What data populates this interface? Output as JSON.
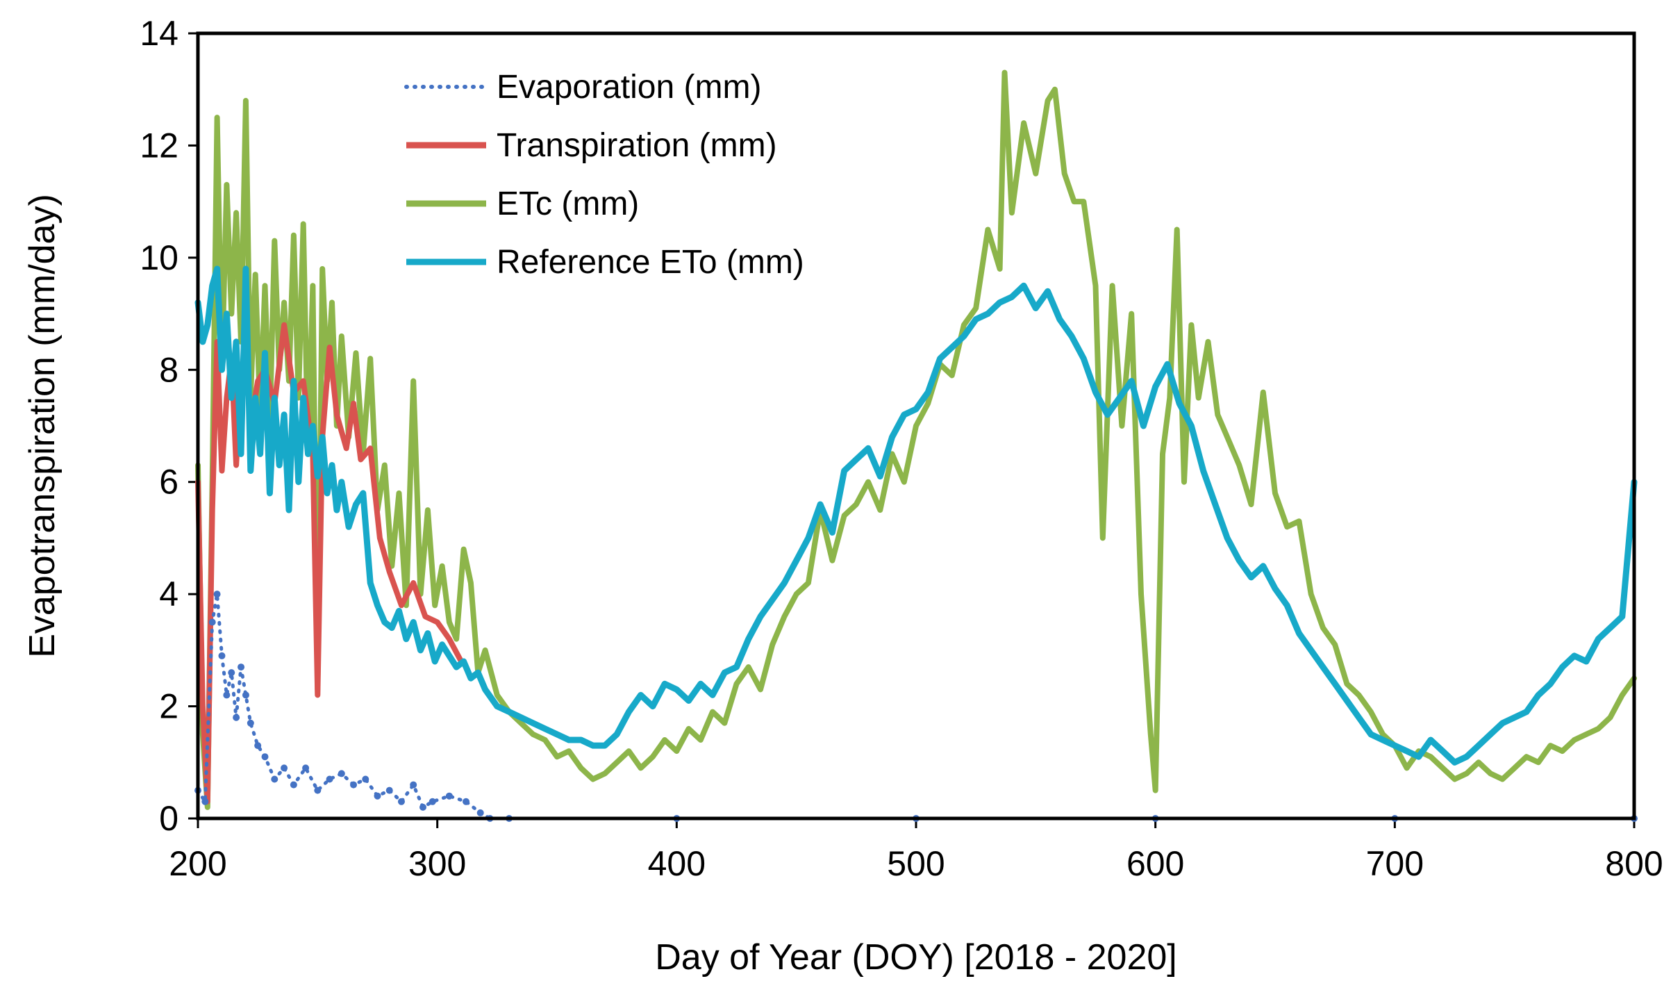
{
  "chart_data": {
    "type": "line",
    "title": "",
    "xlabel": "Day of Year (DOY) [2018 - 2020]",
    "ylabel": "Evapotranspiration (mm/day)",
    "xlim": [
      200,
      800
    ],
    "ylim": [
      0,
      14
    ],
    "xticks": [
      "200",
      "300",
      "400",
      "500",
      "600",
      "700",
      "800"
    ],
    "yticks": [
      "0",
      "2",
      "4",
      "6",
      "8",
      "10",
      "12",
      "14"
    ],
    "grid": false,
    "legend_position": "top-left",
    "series": [
      {
        "name": "Evaporation (mm)",
        "color": "#4472C4",
        "style": "dotted",
        "x": [
          200,
          203,
          206,
          208,
          210,
          212,
          214,
          216,
          218,
          220,
          222,
          225,
          228,
          232,
          236,
          240,
          245,
          250,
          255,
          260,
          265,
          270,
          275,
          280,
          285,
          290,
          294,
          298,
          305,
          312,
          318,
          322,
          330,
          400,
          500,
          600,
          700,
          800
        ],
        "y": [
          0.5,
          0.3,
          3.5,
          4.0,
          2.9,
          2.2,
          2.6,
          1.8,
          2.7,
          2.2,
          1.7,
          1.3,
          1.1,
          0.7,
          0.9,
          0.6,
          0.9,
          0.5,
          0.7,
          0.8,
          0.6,
          0.7,
          0.4,
          0.5,
          0.3,
          0.6,
          0.2,
          0.3,
          0.4,
          0.3,
          0.1,
          0.0,
          0.0,
          0.0,
          0.0,
          0.0,
          0.0,
          0.0
        ]
      },
      {
        "name": "Transpiration (mm)",
        "color": "#D9534F",
        "style": "solid",
        "x": [
          200,
          202,
          204,
          206,
          208,
          210,
          212,
          214,
          216,
          218,
          220,
          222,
          225,
          228,
          232,
          236,
          240,
          244,
          248,
          250,
          252,
          255,
          258,
          262,
          265,
          268,
          272,
          276,
          280,
          285,
          290,
          295,
          300,
          305,
          310
        ],
        "y": [
          6.0,
          2.0,
          0.3,
          5.5,
          8.5,
          6.2,
          7.5,
          8.2,
          6.3,
          7.9,
          8.5,
          7.0,
          7.8,
          8.0,
          7.4,
          8.8,
          7.6,
          7.8,
          6.5,
          2.2,
          6.8,
          8.4,
          7.2,
          6.6,
          7.4,
          6.4,
          6.6,
          5.0,
          4.4,
          3.8,
          4.2,
          3.6,
          3.5,
          3.2,
          2.8
        ]
      },
      {
        "name": "ETc (mm)",
        "color": "#8DB54A",
        "style": "solid",
        "x": [
          200,
          202,
          204,
          206,
          208,
          210,
          212,
          214,
          216,
          218,
          220,
          222,
          224,
          226,
          228,
          230,
          232,
          234,
          236,
          238,
          240,
          242,
          244,
          246,
          248,
          250,
          252,
          254,
          256,
          258,
          260,
          263,
          266,
          269,
          272,
          275,
          278,
          281,
          284,
          287,
          290,
          293,
          296,
          299,
          302,
          305,
          308,
          311,
          314,
          317,
          320,
          325,
          330,
          335,
          340,
          345,
          350,
          355,
          360,
          365,
          370,
          375,
          380,
          385,
          390,
          395,
          400,
          405,
          410,
          415,
          420,
          425,
          430,
          435,
          440,
          445,
          450,
          455,
          460,
          465,
          470,
          475,
          480,
          485,
          490,
          495,
          500,
          505,
          510,
          515,
          520,
          525,
          530,
          535,
          537,
          540,
          545,
          550,
          555,
          558,
          562,
          566,
          570,
          575,
          578,
          582,
          586,
          590,
          594,
          598,
          600,
          603,
          606,
          609,
          612,
          615,
          618,
          622,
          626,
          630,
          635,
          640,
          645,
          650,
          655,
          660,
          665,
          670,
          675,
          680,
          685,
          690,
          695,
          700,
          705,
          710,
          715,
          720,
          725,
          730,
          735,
          740,
          745,
          750,
          755,
          760,
          765,
          770,
          775,
          780,
          785,
          790,
          795,
          800
        ],
        "y": [
          6.3,
          1.5,
          0.2,
          6.0,
          12.5,
          8.0,
          11.3,
          9.0,
          10.8,
          8.5,
          12.8,
          7.5,
          9.7,
          7.2,
          9.5,
          7.0,
          10.3,
          8.0,
          9.2,
          7.8,
          10.4,
          7.5,
          10.6,
          6.5,
          9.5,
          2.3,
          9.8,
          7.8,
          9.2,
          7.0,
          8.6,
          6.8,
          8.3,
          6.5,
          8.2,
          5.5,
          6.3,
          4.5,
          5.8,
          3.8,
          7.8,
          4.0,
          5.5,
          3.8,
          4.5,
          3.5,
          3.2,
          4.8,
          4.2,
          2.6,
          3.0,
          2.2,
          1.9,
          1.7,
          1.5,
          1.4,
          1.1,
          1.2,
          0.9,
          0.7,
          0.8,
          1.0,
          1.2,
          0.9,
          1.1,
          1.4,
          1.2,
          1.6,
          1.4,
          1.9,
          1.7,
          2.4,
          2.7,
          2.3,
          3.1,
          3.6,
          4.0,
          4.2,
          5.5,
          4.6,
          5.4,
          5.6,
          6.0,
          5.5,
          6.5,
          6.0,
          7.0,
          7.4,
          8.1,
          7.9,
          8.8,
          9.1,
          10.5,
          9.8,
          13.3,
          10.8,
          12.4,
          11.5,
          12.8,
          13.0,
          11.5,
          11.0,
          11.0,
          9.5,
          5.0,
          9.5,
          7.0,
          9.0,
          4.0,
          1.5,
          0.5,
          6.5,
          7.5,
          10.5,
          6.0,
          8.8,
          7.5,
          8.5,
          7.2,
          6.8,
          6.3,
          5.6,
          7.6,
          5.8,
          5.2,
          5.3,
          4.0,
          3.4,
          3.1,
          2.4,
          2.2,
          1.9,
          1.5,
          1.3,
          0.9,
          1.2,
          1.1,
          0.9,
          0.7,
          0.8,
          1.0,
          0.8,
          0.7,
          0.9,
          1.1,
          1.0,
          1.3,
          1.2,
          1.4,
          1.5,
          1.6,
          1.8,
          2.2,
          2.5
        ]
      },
      {
        "name": "Reference ETo (mm)",
        "color": "#17A9C9",
        "style": "solid",
        "x": [
          200,
          202,
          204,
          206,
          208,
          210,
          212,
          214,
          216,
          218,
          220,
          222,
          224,
          226,
          228,
          230,
          232,
          234,
          236,
          238,
          240,
          242,
          244,
          246,
          248,
          250,
          252,
          254,
          256,
          258,
          260,
          263,
          266,
          269,
          272,
          275,
          278,
          281,
          284,
          287,
          290,
          293,
          296,
          299,
          302,
          305,
          308,
          311,
          314,
          317,
          320,
          325,
          330,
          335,
          340,
          345,
          350,
          355,
          360,
          365,
          370,
          375,
          380,
          385,
          390,
          395,
          400,
          405,
          410,
          415,
          420,
          425,
          430,
          435,
          440,
          445,
          450,
          455,
          460,
          465,
          470,
          475,
          480,
          485,
          490,
          495,
          500,
          505,
          510,
          515,
          520,
          525,
          530,
          535,
          540,
          545,
          550,
          555,
          560,
          565,
          570,
          575,
          580,
          585,
          590,
          595,
          600,
          605,
          610,
          615,
          620,
          625,
          630,
          635,
          640,
          645,
          650,
          655,
          660,
          665,
          670,
          675,
          680,
          685,
          690,
          695,
          700,
          705,
          710,
          715,
          720,
          725,
          730,
          735,
          740,
          745,
          750,
          755,
          760,
          765,
          770,
          775,
          780,
          785,
          790,
          795,
          800
        ],
        "y": [
          9.2,
          8.5,
          8.8,
          9.5,
          9.8,
          8.0,
          9.0,
          7.5,
          8.5,
          6.5,
          9.8,
          6.2,
          7.5,
          6.5,
          8.3,
          5.8,
          7.5,
          6.3,
          7.2,
          5.5,
          7.8,
          6.0,
          7.5,
          6.5,
          7.0,
          6.1,
          6.8,
          5.8,
          6.3,
          5.5,
          6.0,
          5.2,
          5.6,
          5.8,
          4.2,
          3.8,
          3.5,
          3.4,
          3.7,
          3.2,
          3.5,
          3.0,
          3.3,
          2.8,
          3.1,
          2.9,
          2.7,
          2.8,
          2.5,
          2.6,
          2.3,
          2.0,
          1.9,
          1.8,
          1.7,
          1.6,
          1.5,
          1.4,
          1.4,
          1.3,
          1.3,
          1.5,
          1.9,
          2.2,
          2.0,
          2.4,
          2.3,
          2.1,
          2.4,
          2.2,
          2.6,
          2.7,
          3.2,
          3.6,
          3.9,
          4.2,
          4.6,
          5.0,
          5.6,
          5.1,
          6.2,
          6.4,
          6.6,
          6.1,
          6.8,
          7.2,
          7.3,
          7.6,
          8.2,
          8.4,
          8.6,
          8.9,
          9.0,
          9.2,
          9.3,
          9.5,
          9.1,
          9.4,
          8.9,
          8.6,
          8.2,
          7.6,
          7.2,
          7.5,
          7.8,
          7.0,
          7.7,
          8.1,
          7.4,
          7.0,
          6.2,
          5.6,
          5.0,
          4.6,
          4.3,
          4.5,
          4.1,
          3.8,
          3.3,
          3.0,
          2.7,
          2.4,
          2.1,
          1.8,
          1.5,
          1.4,
          1.3,
          1.2,
          1.1,
          1.4,
          1.2,
          1.0,
          1.1,
          1.3,
          1.5,
          1.7,
          1.8,
          1.9,
          2.2,
          2.4,
          2.7,
          2.9,
          2.8,
          3.2,
          3.4,
          3.6,
          6.0
        ]
      }
    ],
    "legend": [
      "Evaporation (mm)",
      "Transpiration (mm)",
      "ETc (mm)",
      "Reference ETo (mm)"
    ]
  }
}
